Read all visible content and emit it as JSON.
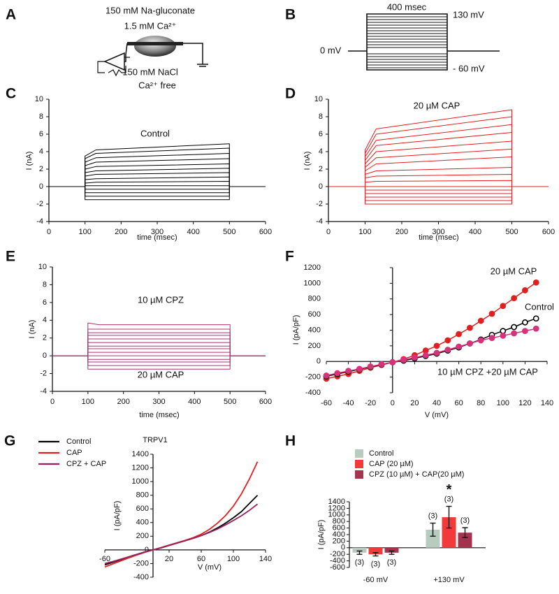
{
  "panel_a": {
    "label": "A",
    "texts": [
      "150 mM Na-gluconate",
      "1.5 mM Ca²⁺",
      "150 mM NaCl",
      "Ca²⁺ free"
    ]
  },
  "panel_b": {
    "label": "B",
    "duration": "400 msec",
    "top": "130 mV",
    "zero": "0 mV",
    "bottom": "- 60 mV"
  },
  "chart_data": [
    {
      "type": "line",
      "panel": "C",
      "color": "#000000",
      "annotations": [
        "Control"
      ],
      "y_label": "I (nA)",
      "x_label": "time (msec)",
      "xlim": [
        0,
        600
      ],
      "xticks": [
        0,
        100,
        200,
        300,
        400,
        500,
        600
      ],
      "ylim": [
        -4,
        10
      ],
      "yticks": [
        -4,
        -2,
        0,
        2,
        4,
        6,
        8,
        10
      ],
      "x": [
        0,
        100,
        100,
        130,
        500,
        500,
        600
      ],
      "series": [
        {
          "values": [
            0,
            0,
            -1.5,
            -1.5,
            -1.5,
            0,
            0
          ]
        },
        {
          "values": [
            0,
            0,
            -1.1,
            -1.1,
            -1.1,
            0,
            0
          ]
        },
        {
          "values": [
            0,
            0,
            -0.7,
            -0.7,
            -0.7,
            0,
            0
          ]
        },
        {
          "values": [
            0,
            0,
            -0.3,
            -0.3,
            -0.3,
            0,
            0
          ]
        },
        {
          "values": [
            0,
            0,
            0.1,
            0.1,
            0.1,
            0,
            0
          ]
        },
        {
          "values": [
            0,
            0,
            0.4,
            0.5,
            0.6,
            0,
            0
          ]
        },
        {
          "values": [
            0,
            0,
            0.8,
            0.9,
            1.1,
            0,
            0
          ]
        },
        {
          "values": [
            0,
            0,
            1.2,
            1.4,
            1.6,
            0,
            0
          ]
        },
        {
          "values": [
            0,
            0,
            1.6,
            1.8,
            2.1,
            0,
            0
          ]
        },
        {
          "values": [
            0,
            0,
            2.0,
            2.3,
            2.6,
            0,
            0
          ]
        },
        {
          "values": [
            0,
            0,
            2.4,
            2.8,
            3.2,
            0,
            0
          ]
        },
        {
          "values": [
            0,
            0,
            2.8,
            3.3,
            3.8,
            0,
            0
          ]
        },
        {
          "values": [
            0,
            0,
            3.2,
            3.8,
            4.4,
            0,
            0
          ]
        },
        {
          "values": [
            0,
            0,
            3.5,
            4.2,
            4.9,
            0,
            0
          ]
        }
      ]
    },
    {
      "type": "line",
      "panel": "D",
      "color": "#e02020",
      "annotations": [
        "20 µM CAP"
      ],
      "y_label": "I (nA)",
      "x_label": "time (msec)",
      "xlim": [
        0,
        600
      ],
      "xticks": [
        0,
        100,
        200,
        300,
        400,
        500,
        600
      ],
      "ylim": [
        -4,
        10
      ],
      "yticks": [
        -4,
        -2,
        0,
        2,
        4,
        6,
        8,
        10
      ],
      "x": [
        0,
        100,
        100,
        130,
        500,
        500,
        600
      ],
      "series": [
        {
          "values": [
            0,
            0,
            -2,
            -2,
            -2,
            0,
            0
          ]
        },
        {
          "values": [
            0,
            0,
            -1.6,
            -1.6,
            -1.6,
            0,
            0
          ]
        },
        {
          "values": [
            0,
            0,
            -1.2,
            -1.2,
            -1.2,
            0,
            0
          ]
        },
        {
          "values": [
            0,
            0,
            -0.8,
            -0.8,
            -0.8,
            0,
            0
          ]
        },
        {
          "values": [
            0,
            0,
            -0.4,
            -0.4,
            -0.4,
            0,
            0
          ]
        },
        {
          "values": [
            0,
            0,
            0,
            0,
            0,
            0,
            0
          ]
        },
        {
          "values": [
            0,
            0,
            0.5,
            0.6,
            0.7,
            0,
            0
          ]
        },
        {
          "values": [
            0,
            0,
            1.0,
            1.2,
            1.4,
            0,
            0
          ]
        },
        {
          "values": [
            0,
            0,
            1.4,
            1.8,
            2.2,
            0,
            0
          ]
        },
        {
          "values": [
            0,
            0,
            1.8,
            2.6,
            3.4,
            0,
            0
          ]
        },
        {
          "values": [
            0,
            0,
            2.2,
            3.3,
            4.3,
            0,
            0
          ]
        },
        {
          "values": [
            0,
            0,
            2.6,
            4.0,
            5.2,
            0,
            0
          ]
        },
        {
          "values": [
            0,
            0,
            3.0,
            4.7,
            6.2,
            0,
            0
          ]
        },
        {
          "values": [
            0,
            0,
            3.4,
            5.3,
            7.1,
            0,
            0
          ]
        },
        {
          "values": [
            0,
            0,
            3.8,
            6.0,
            8.0,
            0,
            0
          ]
        },
        {
          "values": [
            0,
            0,
            4.2,
            6.6,
            8.8,
            0,
            0
          ]
        }
      ]
    },
    {
      "type": "line",
      "panel": "E",
      "color": "#b03070",
      "annotations": [
        "10 µM CPZ",
        "20 µM CAP"
      ],
      "y_label": "I (nA)",
      "x_label": "time (msec)",
      "xlim": [
        0,
        600
      ],
      "xticks": [
        0,
        100,
        200,
        300,
        400,
        500,
        600
      ],
      "ylim": [
        -4,
        10
      ],
      "yticks": [
        -4,
        -2,
        0,
        2,
        4,
        6,
        8,
        10
      ],
      "x": [
        0,
        100,
        100,
        130,
        500,
        500,
        600
      ],
      "series": [
        {
          "values": [
            0,
            0,
            -1.5,
            -1.5,
            -1.5,
            0,
            0
          ]
        },
        {
          "values": [
            0,
            0,
            -1.1,
            -1.1,
            -1.1,
            0,
            0
          ]
        },
        {
          "values": [
            0,
            0,
            -0.7,
            -0.7,
            -0.7,
            0,
            0
          ]
        },
        {
          "values": [
            0,
            0,
            -0.4,
            -0.4,
            -0.4,
            0,
            0
          ]
        },
        {
          "values": [
            0,
            0,
            0,
            0,
            0,
            0,
            0
          ]
        },
        {
          "values": [
            0,
            0,
            0.4,
            0.4,
            0.4,
            0,
            0
          ]
        },
        {
          "values": [
            0,
            0,
            0.8,
            0.8,
            0.8,
            0,
            0
          ]
        },
        {
          "values": [
            0,
            0,
            1.1,
            1.1,
            1.1,
            0,
            0
          ]
        },
        {
          "values": [
            0,
            0,
            1.5,
            1.5,
            1.5,
            0,
            0
          ]
        },
        {
          "values": [
            0,
            0,
            1.9,
            1.9,
            1.9,
            0,
            0
          ]
        },
        {
          "values": [
            0,
            0,
            2.3,
            2.3,
            2.3,
            0,
            0
          ]
        },
        {
          "values": [
            0,
            0,
            2.6,
            2.6,
            2.6,
            0,
            0
          ]
        },
        {
          "values": [
            0,
            0,
            3.0,
            3.0,
            3.0,
            0,
            0
          ]
        },
        {
          "values": [
            0,
            0,
            3.7,
            3.5,
            3.5,
            0,
            0
          ]
        }
      ]
    },
    {
      "type": "line",
      "panel": "F",
      "markers": "circle",
      "y_label": "I (pA/pF)",
      "x_label": "V (mV)",
      "xlim": [
        -60,
        140
      ],
      "xticks": [
        -60,
        -40,
        -20,
        0,
        20,
        40,
        60,
        80,
        100,
        120,
        140
      ],
      "ylim": [
        -400,
        1200
      ],
      "yticks": [
        -400,
        -200,
        0,
        200,
        400,
        600,
        800,
        1000,
        1200
      ],
      "x": [
        -60,
        -50,
        -40,
        -30,
        -20,
        -10,
        0,
        10,
        20,
        30,
        40,
        50,
        60,
        70,
        80,
        90,
        100,
        110,
        120,
        130
      ],
      "series": [
        {
          "name": "20 µM CAP",
          "color": "#e02020",
          "values": [
            -220,
            -190,
            -160,
            -120,
            -80,
            -45,
            -10,
            30,
            80,
            140,
            200,
            270,
            350,
            430,
            520,
            610,
            710,
            810,
            910,
            1010
          ]
        },
        {
          "name": "Control",
          "color": "#000000",
          "open": true,
          "values": [
            -190,
            -160,
            -130,
            -100,
            -70,
            -40,
            -10,
            10,
            40,
            70,
            100,
            140,
            180,
            230,
            280,
            340,
            390,
            440,
            500,
            550
          ]
        },
        {
          "name": "10 µM CPZ +20 µM CAP",
          "color": "#d6337a",
          "values": [
            -180,
            -150,
            -120,
            -95,
            -65,
            -35,
            -10,
            20,
            50,
            80,
            110,
            150,
            190,
            230,
            270,
            300,
            330,
            360,
            390,
            420
          ]
        }
      ]
    },
    {
      "type": "line",
      "panel": "G",
      "title": "TRPV1",
      "y_label": "I (pA/pF)",
      "x_label": "V (mV)",
      "xlim": [
        -60,
        140
      ],
      "xticks": [
        -60,
        20,
        60,
        100,
        140
      ],
      "ylim": [
        -400,
        1400
      ],
      "yticks": [
        -400,
        -200,
        0,
        200,
        400,
        600,
        800,
        1000,
        1200,
        1400
      ],
      "x": [
        -60,
        -50,
        -40,
        -30,
        -20,
        -10,
        0,
        10,
        20,
        30,
        40,
        50,
        60,
        70,
        80,
        90,
        100,
        110,
        120,
        130
      ],
      "series": [
        {
          "name": "Control",
          "color": "#000000",
          "values": [
            -220,
            -180,
            -140,
            -100,
            -65,
            -30,
            0,
            30,
            65,
            100,
            135,
            170,
            210,
            260,
            320,
            390,
            470,
            560,
            680,
            800
          ]
        },
        {
          "name": "CAP",
          "color": "#e02020",
          "values": [
            -250,
            -205,
            -160,
            -115,
            -75,
            -35,
            0,
            35,
            70,
            105,
            140,
            180,
            230,
            300,
            390,
            500,
            640,
            820,
            1040,
            1290
          ]
        },
        {
          "name": "CPZ + CAP",
          "color": "#9a2060",
          "values": [
            -200,
            -170,
            -135,
            -100,
            -65,
            -30,
            0,
            30,
            65,
            100,
            135,
            170,
            210,
            255,
            305,
            365,
            430,
            500,
            580,
            670
          ]
        }
      ]
    },
    {
      "type": "bar",
      "panel": "H",
      "significance": "*",
      "y_label": "I (pA/pF)",
      "categories": [
        "-60 mV",
        "+130 mV"
      ],
      "ylim": [
        -600,
        1400
      ],
      "yticks": [
        -600,
        -400,
        -200,
        0,
        200,
        400,
        600,
        800,
        1000,
        1200,
        1400
      ],
      "series": [
        {
          "name": "Control",
          "color": "#b8cbbf",
          "values": [
            -150,
            550
          ],
          "errors": [
            50,
            200
          ],
          "n": [
            "(3)",
            "(3)"
          ]
        },
        {
          "name": "CAP (20 µM)",
          "color": "#f23a3a",
          "values": [
            -200,
            930
          ],
          "errors": [
            50,
            330
          ],
          "n": [
            "(3)",
            "(3)"
          ]
        },
        {
          "name": "CPZ (10 µM) + CAP(20 µM)",
          "color": "#a4344e",
          "values": [
            -150,
            460
          ],
          "errors": [
            50,
            150
          ],
          "n": [
            "(3)",
            "(3)"
          ]
        }
      ]
    }
  ]
}
